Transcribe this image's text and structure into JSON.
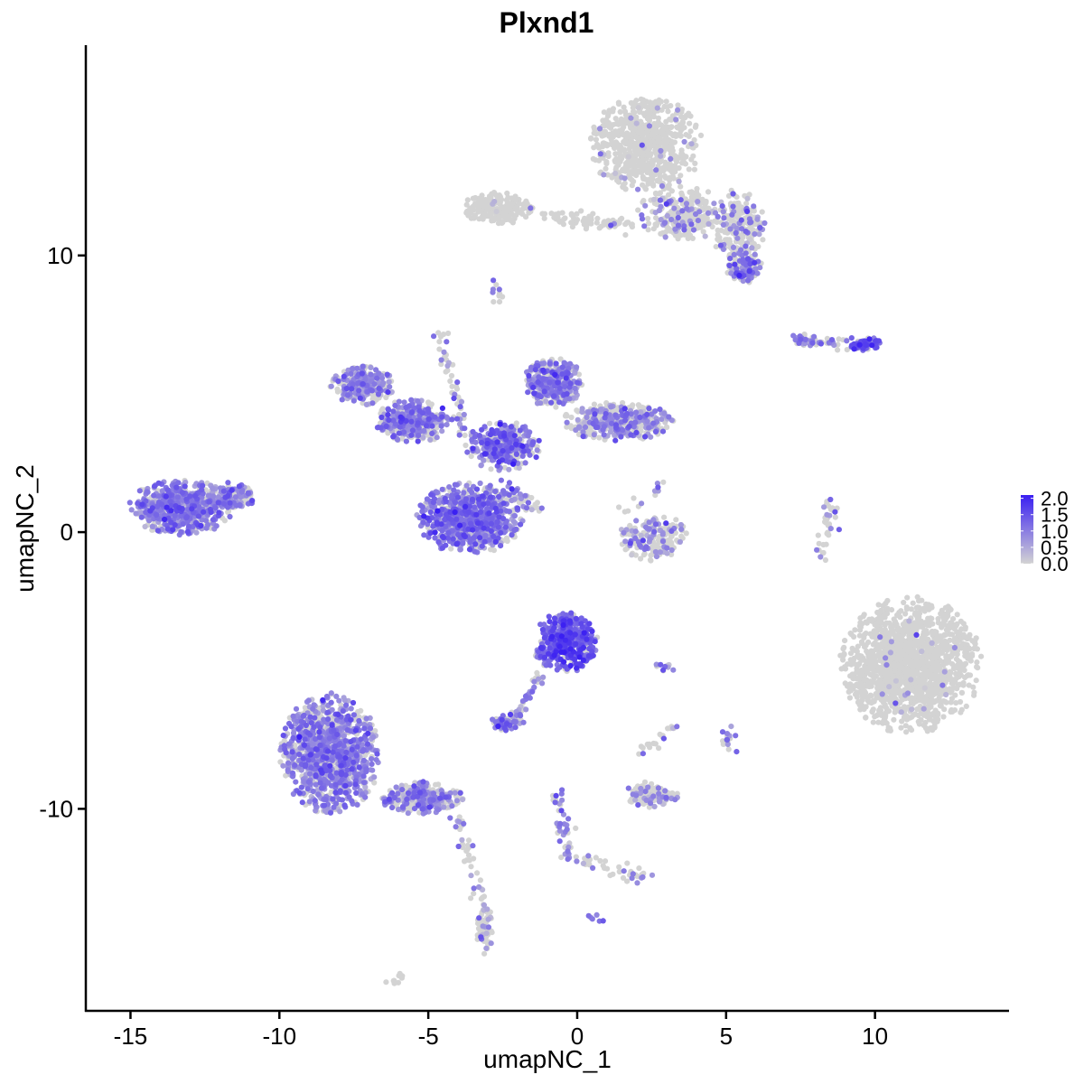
{
  "chart_data": {
    "type": "scatter",
    "title": "Plxnd1",
    "xlabel": "umapNC_1",
    "ylabel": "umapNC_2",
    "xlim": [
      -16.5,
      14.5
    ],
    "ylim": [
      -17.3,
      17.6
    ],
    "x_ticks": [
      {
        "value": -15,
        "label": "-15"
      },
      {
        "value": -10,
        "label": "-10"
      },
      {
        "value": -5,
        "label": "-5"
      },
      {
        "value": 0,
        "label": "0"
      },
      {
        "value": 5,
        "label": "5"
      },
      {
        "value": 10,
        "label": "10"
      }
    ],
    "y_ticks": [
      {
        "value": 10,
        "label": "10"
      },
      {
        "value": 0,
        "label": "0"
      },
      {
        "value": -10,
        "label": "-10"
      }
    ],
    "grid": false,
    "legend": {
      "placement": "right",
      "ticks": [
        {
          "value": 2.0,
          "label": "2.0"
        },
        {
          "value": 1.5,
          "label": "1.5"
        },
        {
          "value": 1.0,
          "label": "1.0"
        },
        {
          "value": 0.5,
          "label": "0.5"
        },
        {
          "value": 0.0,
          "label": "0.0"
        }
      ],
      "color_low": "#d3d3d3",
      "color_high": "#3a1ff2",
      "range": [
        0,
        2.1
      ]
    },
    "clusters": [
      {
        "cx": 2.3,
        "cy": 14.0,
        "rx": 1.9,
        "ry": 1.8,
        "n": 650,
        "expr_frac": 0.05,
        "mean": 0.7
      },
      {
        "cx": 3.5,
        "cy": 11.5,
        "rx": 1.5,
        "ry": 1.0,
        "n": 250,
        "expr_frac": 0.25,
        "mean": 0.8
      },
      {
        "cx": 5.4,
        "cy": 11.0,
        "rx": 0.9,
        "ry": 1.4,
        "n": 220,
        "expr_frac": 0.3,
        "mean": 0.8
      },
      {
        "cx": 5.6,
        "cy": 9.6,
        "rx": 0.6,
        "ry": 0.6,
        "n": 120,
        "expr_frac": 0.6,
        "mean": 1.0
      },
      {
        "cx": -2.7,
        "cy": 11.7,
        "rx": 1.2,
        "ry": 0.6,
        "n": 200,
        "expr_frac": 0.02,
        "mean": 0.6
      },
      {
        "cx": 9.6,
        "cy": 6.8,
        "rx": 0.6,
        "ry": 0.3,
        "n": 70,
        "expr_frac": 0.8,
        "mean": 1.4
      },
      {
        "cx": 11.2,
        "cy": -4.8,
        "rx": 2.4,
        "ry": 2.5,
        "n": 1500,
        "expr_frac": 0.02,
        "mean": 0.7
      },
      {
        "cx": -13.3,
        "cy": 0.9,
        "rx": 1.8,
        "ry": 1.0,
        "n": 650,
        "expr_frac": 0.7,
        "mean": 0.9
      },
      {
        "cx": -11.6,
        "cy": 1.3,
        "rx": 0.8,
        "ry": 0.5,
        "n": 120,
        "expr_frac": 0.6,
        "mean": 0.9
      },
      {
        "cx": -3.6,
        "cy": 0.5,
        "rx": 1.8,
        "ry": 1.3,
        "n": 850,
        "expr_frac": 0.7,
        "mean": 1.0
      },
      {
        "cx": -7.2,
        "cy": 5.3,
        "rx": 1.1,
        "ry": 0.7,
        "n": 300,
        "expr_frac": 0.5,
        "mean": 0.8
      },
      {
        "cx": -5.5,
        "cy": 4.0,
        "rx": 1.3,
        "ry": 0.8,
        "n": 350,
        "expr_frac": 0.6,
        "mean": 0.9
      },
      {
        "cx": -2.5,
        "cy": 3.1,
        "rx": 1.3,
        "ry": 0.9,
        "n": 350,
        "expr_frac": 0.65,
        "mean": 1.1
      },
      {
        "cx": -0.8,
        "cy": 5.4,
        "rx": 1.0,
        "ry": 0.9,
        "n": 400,
        "expr_frac": 0.6,
        "mean": 0.9
      },
      {
        "cx": 1.4,
        "cy": 4.0,
        "rx": 1.9,
        "ry": 0.7,
        "n": 450,
        "expr_frac": 0.45,
        "mean": 0.8
      },
      {
        "cx": -8.3,
        "cy": -8.0,
        "rx": 1.7,
        "ry": 2.2,
        "n": 1100,
        "expr_frac": 0.65,
        "mean": 0.9
      },
      {
        "cx": -5.2,
        "cy": -9.6,
        "rx": 1.4,
        "ry": 0.6,
        "n": 300,
        "expr_frac": 0.5,
        "mean": 0.8
      },
      {
        "cx": -0.4,
        "cy": -4.0,
        "rx": 1.1,
        "ry": 1.1,
        "n": 450,
        "expr_frac": 0.85,
        "mean": 1.3
      },
      {
        "cx": 2.6,
        "cy": -0.2,
        "rx": 1.2,
        "ry": 0.9,
        "n": 180,
        "expr_frac": 0.3,
        "mean": 0.8
      },
      {
        "cx": 2.5,
        "cy": -9.5,
        "rx": 0.9,
        "ry": 0.5,
        "n": 120,
        "expr_frac": 0.25,
        "mean": 0.8
      },
      {
        "cx": -2.4,
        "cy": -6.9,
        "rx": 0.6,
        "ry": 0.3,
        "n": 60,
        "expr_frac": 0.6,
        "mean": 1.0
      },
      {
        "cx": -3.1,
        "cy": -14.4,
        "rx": 0.3,
        "ry": 0.9,
        "n": 80,
        "expr_frac": 0.2,
        "mean": 0.7
      }
    ],
    "trails": [
      {
        "from": [
          -1.0,
          11.5
        ],
        "to": [
          1.8,
          11.0
        ],
        "n": 80,
        "expr_frac": 0.05
      },
      {
        "from": [
          -4.6,
          7.2
        ],
        "to": [
          -3.8,
          3.5
        ],
        "n": 50,
        "expr_frac": 0.4
      },
      {
        "from": [
          -2.6,
          1.8
        ],
        "to": [
          -1.3,
          0.8
        ],
        "n": 40,
        "expr_frac": 0.6
      },
      {
        "from": [
          -1.3,
          -5.2
        ],
        "to": [
          -2.1,
          -6.8
        ],
        "n": 40,
        "expr_frac": 0.6
      },
      {
        "from": [
          -0.7,
          -9.3
        ],
        "to": [
          -0.3,
          -11.8
        ],
        "n": 40,
        "expr_frac": 0.6
      },
      {
        "from": [
          0.0,
          -11.8
        ],
        "to": [
          2.3,
          -12.5
        ],
        "n": 40,
        "expr_frac": 0.3
      },
      {
        "from": [
          -4.0,
          -10.3
        ],
        "to": [
          -3.2,
          -13.5
        ],
        "n": 40,
        "expr_frac": 0.3
      },
      {
        "from": [
          7.3,
          7.0
        ],
        "to": [
          9.0,
          6.8
        ],
        "n": 50,
        "expr_frac": 0.5
      },
      {
        "from": [
          8.6,
          1.2
        ],
        "to": [
          8.2,
          -1.0
        ],
        "n": 35,
        "expr_frac": 0.2
      },
      {
        "from": [
          2.0,
          -8.0
        ],
        "to": [
          3.4,
          -7.0
        ],
        "n": 20,
        "expr_frac": 0.2
      },
      {
        "from": [
          5.0,
          -7.0
        ],
        "to": [
          5.1,
          -7.8
        ],
        "n": 15,
        "expr_frac": 0.5
      },
      {
        "from": [
          2.7,
          -5.0
        ],
        "to": [
          3.1,
          -4.9
        ],
        "n": 10,
        "expr_frac": 0.9
      },
      {
        "from": [
          -6.2,
          -16.2
        ],
        "to": [
          -5.9,
          -16.0
        ],
        "n": 10,
        "expr_frac": 0.0
      },
      {
        "from": [
          -2.8,
          9.0
        ],
        "to": [
          -2.6,
          8.4
        ],
        "n": 10,
        "expr_frac": 0.7
      },
      {
        "from": [
          0.6,
          -13.8
        ],
        "to": [
          0.7,
          -14.0
        ],
        "n": 6,
        "expr_frac": 1.0
      },
      {
        "from": [
          1.5,
          0.8
        ],
        "to": [
          3.0,
          1.8
        ],
        "n": 12,
        "expr_frac": 0.3
      }
    ]
  }
}
